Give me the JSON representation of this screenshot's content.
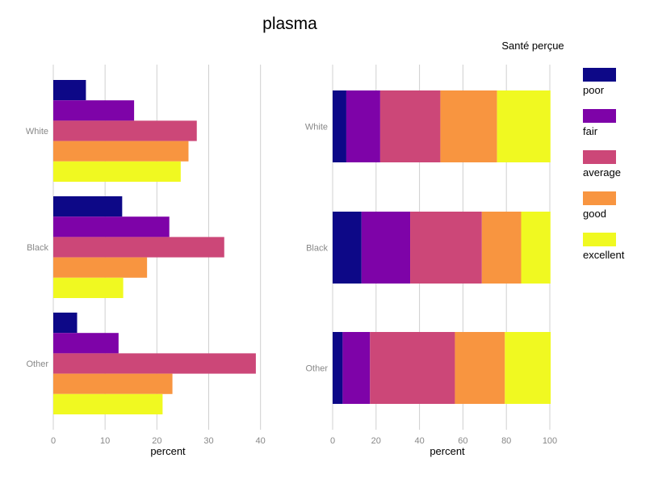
{
  "title": "plasma",
  "legend_title": "Santé perçue",
  "colors": {
    "poor": "#0d0887",
    "fair": "#7e03a8",
    "average": "#cc4778",
    "good": "#f89540",
    "excellent": "#f0f921",
    "grid": "#d0d0d0",
    "tick_text": "#888888"
  },
  "chart_data": [
    {
      "type": "bar",
      "orientation": "horizontal",
      "mode": "grouped",
      "categories": [
        "White",
        "Black",
        "Other"
      ],
      "series": [
        {
          "name": "poor",
          "values": [
            6.3,
            13.3,
            4.6
          ]
        },
        {
          "name": "fair",
          "values": [
            15.6,
            22.4,
            12.6
          ]
        },
        {
          "name": "average",
          "values": [
            27.7,
            33.0,
            39.1
          ]
        },
        {
          "name": "good",
          "values": [
            26.1,
            18.1,
            23.0
          ]
        },
        {
          "name": "excellent",
          "values": [
            24.6,
            13.5,
            21.1
          ]
        }
      ],
      "xlabel": "percent",
      "xlim": [
        0,
        42
      ],
      "xticks": [
        0,
        10,
        20,
        30,
        40
      ],
      "grid": true
    },
    {
      "type": "bar",
      "orientation": "horizontal",
      "mode": "stacked",
      "categories": [
        "White",
        "Black",
        "Other"
      ],
      "series": [
        {
          "name": "poor",
          "values": [
            6.3,
            13.3,
            4.6
          ]
        },
        {
          "name": "fair",
          "values": [
            15.6,
            22.4,
            12.6
          ]
        },
        {
          "name": "average",
          "values": [
            27.7,
            33.0,
            39.1
          ]
        },
        {
          "name": "good",
          "values": [
            26.1,
            18.1,
            23.0
          ]
        },
        {
          "name": "excellent",
          "values": [
            24.6,
            13.5,
            21.1
          ]
        }
      ],
      "xlabel": "percent",
      "xlim": [
        0,
        100
      ],
      "xticks": [
        0,
        20,
        40,
        60,
        80,
        100
      ],
      "grid": true
    }
  ],
  "legend": [
    "poor",
    "fair",
    "average",
    "good",
    "excellent"
  ]
}
